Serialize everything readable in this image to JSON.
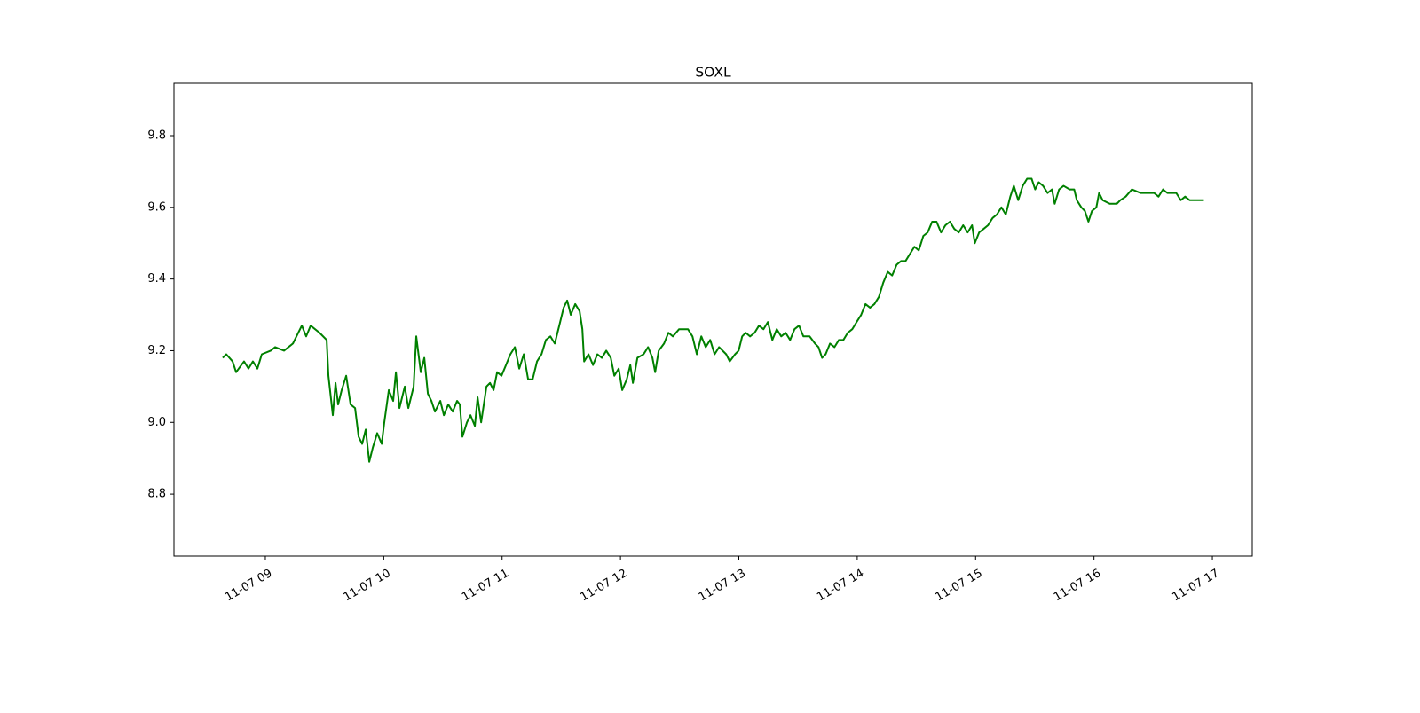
{
  "chart_data": {
    "type": "line",
    "title": "SOXL",
    "color": "#008000",
    "x": [
      8.64,
      8.67,
      8.723,
      8.753,
      8.82,
      8.858,
      8.895,
      8.933,
      8.97,
      9.045,
      9.083,
      9.158,
      9.233,
      9.308,
      9.345,
      9.383,
      9.458,
      9.518,
      9.533,
      9.57,
      9.593,
      9.615,
      9.645,
      9.683,
      9.72,
      9.758,
      9.788,
      9.818,
      9.848,
      9.878,
      9.908,
      9.945,
      9.983,
      10.005,
      10.043,
      10.08,
      10.103,
      10.133,
      10.178,
      10.208,
      10.253,
      10.275,
      10.313,
      10.343,
      10.373,
      10.403,
      10.433,
      10.478,
      10.508,
      10.545,
      10.583,
      10.62,
      10.643,
      10.665,
      10.703,
      10.733,
      10.77,
      10.793,
      10.823,
      10.868,
      10.898,
      10.928,
      10.958,
      10.995,
      11.033,
      11.07,
      11.108,
      11.145,
      11.183,
      11.22,
      11.258,
      11.295,
      11.333,
      11.37,
      11.408,
      11.445,
      11.483,
      11.52,
      11.55,
      11.58,
      11.618,
      11.655,
      11.678,
      11.693,
      11.73,
      11.768,
      11.805,
      11.843,
      11.88,
      11.918,
      11.948,
      11.985,
      12.015,
      12.053,
      12.083,
      12.105,
      12.143,
      12.195,
      12.233,
      12.27,
      12.293,
      12.323,
      12.368,
      12.405,
      12.443,
      12.495,
      12.57,
      12.608,
      12.645,
      12.683,
      12.72,
      12.758,
      12.795,
      12.833,
      12.893,
      12.923,
      12.968,
      12.998,
      13.028,
      13.058,
      13.095,
      13.133,
      13.17,
      13.208,
      13.245,
      13.283,
      13.32,
      13.358,
      13.395,
      13.433,
      13.47,
      13.508,
      13.545,
      13.598,
      13.643,
      13.673,
      13.703,
      13.733,
      13.77,
      13.808,
      13.845,
      13.883,
      13.92,
      13.958,
      13.995,
      14.033,
      14.07,
      14.108,
      14.145,
      14.183,
      14.22,
      14.258,
      14.295,
      14.333,
      14.37,
      14.408,
      14.445,
      14.483,
      14.52,
      14.558,
      14.595,
      14.633,
      14.67,
      14.708,
      14.745,
      14.783,
      14.82,
      14.858,
      14.895,
      14.933,
      14.97,
      14.993,
      15.03,
      15.068,
      15.105,
      15.143,
      15.18,
      15.218,
      15.255,
      15.293,
      15.323,
      15.36,
      15.398,
      15.435,
      15.473,
      15.503,
      15.533,
      15.57,
      15.608,
      15.645,
      15.668,
      15.705,
      15.743,
      15.795,
      15.833,
      15.855,
      15.893,
      15.923,
      15.953,
      15.983,
      16.02,
      16.043,
      16.073,
      16.133,
      16.193,
      16.223,
      16.268,
      16.32,
      16.395,
      16.508,
      16.545,
      16.583,
      16.62,
      16.695,
      16.733,
      16.77,
      16.808,
      16.928
    ],
    "values": [
      9.18,
      9.19,
      9.17,
      9.14,
      9.17,
      9.15,
      9.17,
      9.15,
      9.19,
      9.2,
      9.21,
      9.2,
      9.22,
      9.27,
      9.24,
      9.27,
      9.25,
      9.23,
      9.13,
      9.02,
      9.11,
      9.05,
      9.09,
      9.13,
      9.05,
      9.04,
      8.96,
      8.94,
      8.98,
      8.89,
      8.93,
      8.97,
      8.94,
      9.0,
      9.09,
      9.06,
      9.14,
      9.04,
      9.1,
      9.04,
      9.1,
      9.24,
      9.14,
      9.18,
      9.08,
      9.06,
      9.03,
      9.06,
      9.02,
      9.05,
      9.03,
      9.06,
      9.05,
      8.96,
      9.0,
      9.02,
      8.99,
      9.07,
      9.0,
      9.1,
      9.11,
      9.09,
      9.14,
      9.13,
      9.16,
      9.19,
      9.21,
      9.15,
      9.19,
      9.12,
      9.12,
      9.17,
      9.19,
      9.23,
      9.24,
      9.22,
      9.27,
      9.32,
      9.34,
      9.3,
      9.33,
      9.31,
      9.26,
      9.17,
      9.19,
      9.16,
      9.19,
      9.18,
      9.2,
      9.18,
      9.13,
      9.15,
      9.09,
      9.12,
      9.16,
      9.11,
      9.18,
      9.19,
      9.21,
      9.18,
      9.14,
      9.2,
      9.22,
      9.25,
      9.24,
      9.26,
      9.26,
      9.24,
      9.19,
      9.24,
      9.21,
      9.23,
      9.19,
      9.21,
      9.19,
      9.17,
      9.19,
      9.2,
      9.24,
      9.25,
      9.24,
      9.25,
      9.27,
      9.26,
      9.28,
      9.23,
      9.26,
      9.24,
      9.25,
      9.23,
      9.26,
      9.27,
      9.24,
      9.24,
      9.22,
      9.21,
      9.18,
      9.19,
      9.22,
      9.21,
      9.23,
      9.23,
      9.25,
      9.26,
      9.28,
      9.3,
      9.33,
      9.32,
      9.33,
      9.35,
      9.39,
      9.42,
      9.41,
      9.44,
      9.45,
      9.45,
      9.47,
      9.49,
      9.48,
      9.52,
      9.53,
      9.56,
      9.56,
      9.53,
      9.55,
      9.56,
      9.54,
      9.53,
      9.55,
      9.53,
      9.55,
      9.5,
      9.53,
      9.54,
      9.55,
      9.57,
      9.58,
      9.6,
      9.58,
      9.63,
      9.66,
      9.62,
      9.66,
      9.68,
      9.68,
      9.65,
      9.67,
      9.66,
      9.64,
      9.65,
      9.61,
      9.65,
      9.66,
      9.65,
      9.65,
      9.62,
      9.6,
      9.59,
      9.56,
      9.59,
      9.6,
      9.64,
      9.62,
      9.61,
      9.61,
      9.62,
      9.63,
      9.65,
      9.64,
      9.64,
      9.63,
      9.65,
      9.64,
      9.64,
      9.62,
      9.63,
      9.62,
      9.62
    ],
    "xlim": [
      8.228,
      17.337
    ],
    "xticks": [
      {
        "value": 9,
        "label": "11-07 09"
      },
      {
        "value": 10,
        "label": "11-07 10"
      },
      {
        "value": 11,
        "label": "11-07 11"
      },
      {
        "value": 12,
        "label": "11-07 12"
      },
      {
        "value": 13,
        "label": "11-07 13"
      },
      {
        "value": 14,
        "label": "11-07 14"
      },
      {
        "value": 15,
        "label": "11-07 15"
      },
      {
        "value": 16,
        "label": "11-07 16"
      },
      {
        "value": 17,
        "label": "11-07 17"
      }
    ],
    "ylim": [
      8.627,
      9.946
    ],
    "yticks": [
      8.8,
      {
        "value": 9,
        "label": "9.0"
      },
      9.2,
      9.4,
      9.6,
      9.8
    ],
    "grid": false
  }
}
